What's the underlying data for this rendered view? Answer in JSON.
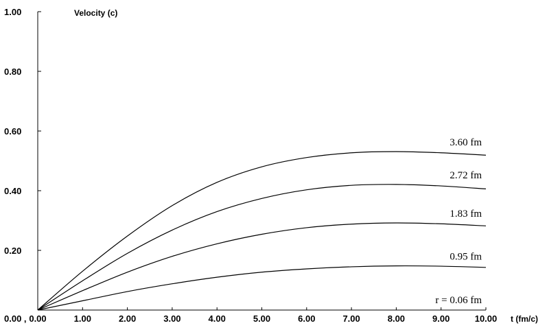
{
  "chart_data": {
    "type": "line",
    "title": "",
    "ylabel": "Velocity (c)",
    "xlabel": "t (fm/c)",
    "xlim": [
      0,
      10
    ],
    "ylim": [
      0,
      1
    ],
    "x_ticks": [
      "0.00",
      "1.00",
      "2.00",
      "3.00",
      "4.00",
      "5.00",
      "6.00",
      "7.00",
      "8.00",
      "9.00",
      "10.00"
    ],
    "y_ticks": [
      "1.00",
      "0.80",
      "0.60",
      "0.40",
      "0.20"
    ],
    "origin_label": "0.00 ,",
    "grid": false,
    "x": [
      0,
      1,
      2,
      3,
      4,
      5,
      6,
      7,
      8,
      9,
      10
    ],
    "series": [
      {
        "name": "r = 0.06 fm",
        "values": [
          0,
          0,
          0,
          0,
          0,
          0,
          0,
          0,
          0,
          0,
          0
        ]
      },
      {
        "name": "0.95 fm",
        "values": [
          0,
          0.031,
          0.062,
          0.088,
          0.11,
          0.127,
          0.138,
          0.145,
          0.148,
          0.147,
          0.143
        ]
      },
      {
        "name": "1.83 fm",
        "values": [
          0,
          0.065,
          0.127,
          0.18,
          0.222,
          0.254,
          0.276,
          0.288,
          0.292,
          0.289,
          0.282
        ]
      },
      {
        "name": "2.72 fm",
        "values": [
          0,
          0.098,
          0.19,
          0.268,
          0.33,
          0.374,
          0.403,
          0.418,
          0.421,
          0.416,
          0.406
        ]
      },
      {
        "name": "3.60 fm",
        "values": [
          0,
          0.13,
          0.248,
          0.35,
          0.428,
          0.48,
          0.511,
          0.527,
          0.531,
          0.527,
          0.519
        ]
      }
    ]
  }
}
